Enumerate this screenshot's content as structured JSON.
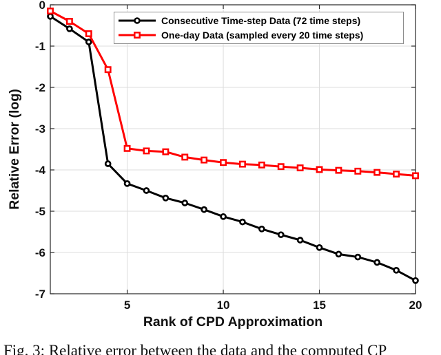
{
  "figure": {
    "caption": "Fig. 3: Relative error between the data and the computed CP"
  },
  "chart_data": {
    "type": "line",
    "title": "",
    "xlabel": "Rank of CPD Approximation",
    "ylabel": "Relative Error (log)",
    "xlim": [
      1,
      20
    ],
    "ylim": [
      -7,
      0
    ],
    "xticks": [
      5,
      10,
      15,
      20
    ],
    "yticks": [
      0,
      -1,
      -2,
      -3,
      -4,
      -5,
      -6,
      -7
    ],
    "grid": true,
    "legend_position": "top-right-inside",
    "x": [
      1,
      2,
      3,
      4,
      5,
      6,
      7,
      8,
      9,
      10,
      11,
      12,
      13,
      14,
      15,
      16,
      17,
      18,
      19,
      20
    ],
    "series": [
      {
        "name": "Consecutive Time-step Data (72 time steps)",
        "color": "#000000",
        "marker": "circle",
        "values": [
          -0.28,
          -0.58,
          -0.9,
          -3.85,
          -4.33,
          -4.5,
          -4.68,
          -4.8,
          -4.96,
          -5.13,
          -5.26,
          -5.43,
          -5.57,
          -5.7,
          -5.88,
          -6.04,
          -6.11,
          -6.24,
          -6.43,
          -6.68
        ]
      },
      {
        "name": "One-day Data (sampled every 20 time steps)",
        "color": "#ff0000",
        "marker": "square",
        "values": [
          -0.15,
          -0.4,
          -0.7,
          -1.57,
          -3.48,
          -3.54,
          -3.56,
          -3.69,
          -3.76,
          -3.82,
          -3.86,
          -3.88,
          -3.92,
          -3.95,
          -3.99,
          -4.01,
          -4.03,
          -4.06,
          -4.1,
          -4.14
        ]
      }
    ]
  },
  "colors": {
    "series_black": "#000000",
    "series_red": "#ff0000",
    "grid": "#dcdcdc",
    "axis": "#262626",
    "legend_border": "#8c8c8c",
    "background": "#ffffff"
  }
}
